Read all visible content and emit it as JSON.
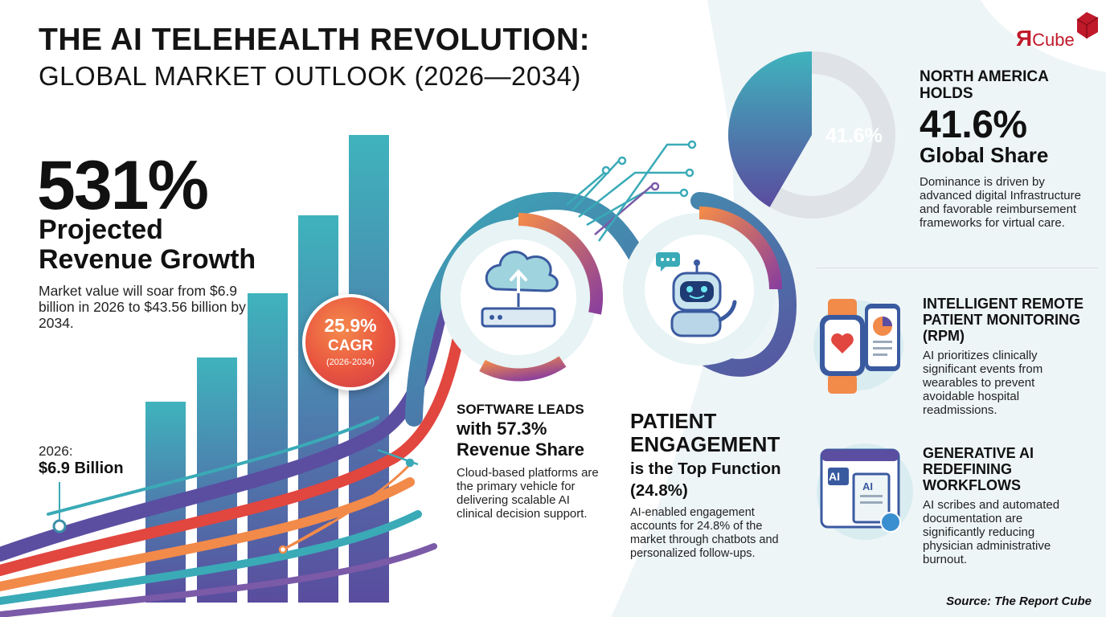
{
  "title": "THE AI TELEHEALTH REVOLUTION:",
  "subtitle": "GLOBAL MARKET OUTLOOK (2026—2034)",
  "logo": {
    "mark": "Я",
    "text": "Cube"
  },
  "growth": {
    "percent": "531%",
    "label_line1": "Projected",
    "label_line2": "Revenue Growth",
    "description": "Market value will soar from $6.9 billion in 2026 to $43.56 billion by 2034.",
    "start_label": "2026:",
    "start_value": "$6.9 Billion"
  },
  "cagr": {
    "value": "25.9%",
    "label": "CAGR",
    "period": "(2026-2034)"
  },
  "software": {
    "heading": "SOFTWARE LEADS",
    "heading2": "with 57.3% Revenue Share",
    "body": "Cloud-based platforms are the primary vehicle for delivering scalable AI clinical decision support."
  },
  "patient": {
    "heading": "PATIENT ENGAGEMENT",
    "heading2": "is the Top Function (24.8%)",
    "body": "AI-enabled engagement accounts for 24.8% of the market through chatbots and personalized follow-ups."
  },
  "north_america": {
    "pie_label": "41.6%",
    "share_fraction": 0.416,
    "heading": "NORTH AMERICA HOLDS",
    "big_value": "41.6%",
    "big_label": "Global Share",
    "body": "Dominance is driven by advanced digital Infrastructure and favorable reimbursement frameworks for virtual care."
  },
  "rpm": {
    "heading": "INTELLIGENT REMOTE PATIENT MONITORING (RPM)",
    "body": "AI prioritizes clinically significant events from wearables to prevent avoidable hospital readmissions."
  },
  "genai": {
    "heading": "GENERATIVE AI REDEFINING WORKFLOWS",
    "body": "AI scribes and automated documentation are significantly reducing physician administrative burnout.",
    "doc_tag": "AI"
  },
  "source": "Source: The Report Cube",
  "icons": [
    "cloud-upload-icon",
    "server-icon",
    "chatbot-icon",
    "chat-bubble-icon",
    "smartwatch-icon",
    "phone-chart-icon",
    "ai-document-icon",
    "circuit-lines-icon"
  ],
  "colors": {
    "teal": "#3aaab7",
    "purple": "#5b4ea1",
    "orange": "#f28a4a",
    "red": "#e1463f"
  }
}
